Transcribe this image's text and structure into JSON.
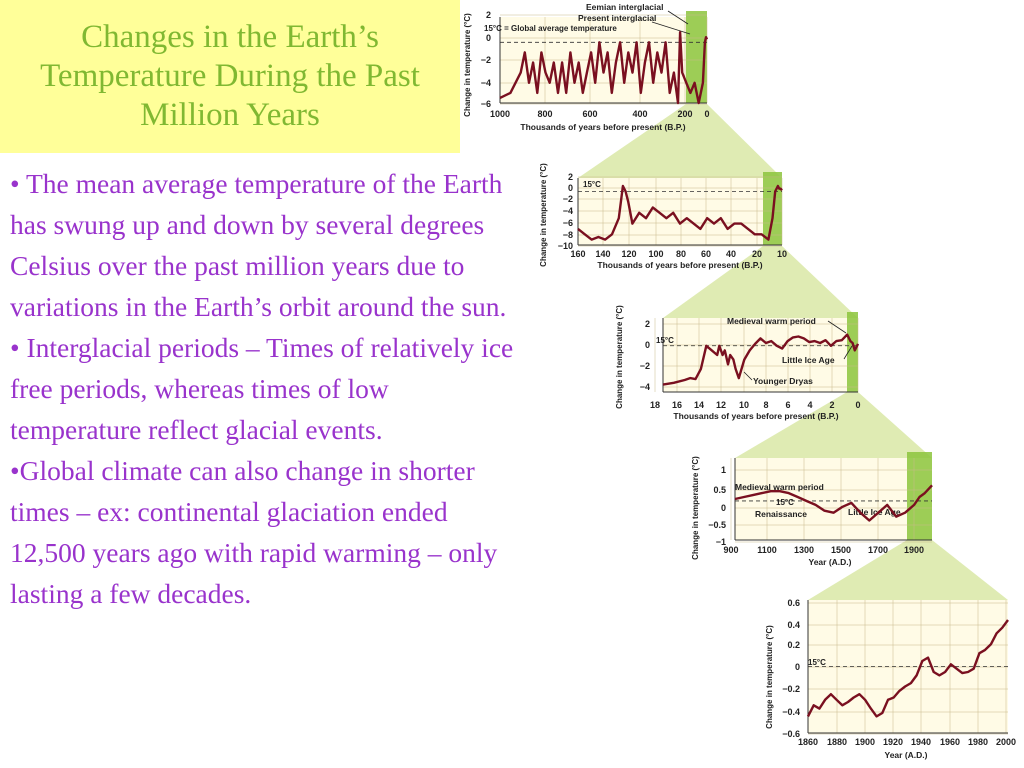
{
  "slide": {
    "title": "Changes in the Earth’s Temperature During the Past Million Years",
    "bullets": [
      "• The mean average temperature of the Earth has swung up and down by several degrees Celsius over the past million years due to variations in the Earth’s orbit around the sun.",
      "• Interglacial periods – Times of relatively ice free periods, whereas times of low temperature reflect glacial events.",
      "•Global climate can also change in shorter times – ex: continental glaciation ended 12,500 years ago with rapid warming – only lasting a few decades."
    ]
  },
  "colors": {
    "title": "#80b832",
    "text": "#9933cc",
    "line": "#7a1020",
    "highlight": "#8cc43c",
    "connector": "#d4e49a",
    "background": "#ffff99"
  },
  "chart_data": [
    {
      "type": "line",
      "ylabel": "Change in temperature (°C)",
      "xlabel": "Thousands of years before present (B.P.)",
      "xticks": [
        "1000",
        "800",
        "600",
        "400",
        "200",
        "0"
      ],
      "yticks": [
        "2",
        "0",
        "−2",
        "−4",
        "−6"
      ],
      "xlim": [
        1000,
        0
      ],
      "ylim": [
        -6,
        2.5
      ],
      "baseline_label": "15°C = Global average temperature",
      "annotations": [
        "Eemian interglacial",
        "Present interglacial"
      ],
      "x": [
        1000,
        950,
        900,
        880,
        860,
        840,
        820,
        800,
        780,
        760,
        740,
        720,
        700,
        680,
        660,
        640,
        620,
        600,
        580,
        560,
        540,
        520,
        500,
        480,
        460,
        440,
        420,
        400,
        380,
        360,
        340,
        320,
        300,
        280,
        260,
        240,
        220,
        200,
        180,
        160,
        140,
        130,
        120,
        100,
        80,
        60,
        40,
        20,
        10,
        5,
        0
      ],
      "y": [
        -5.5,
        -5,
        -3,
        -1,
        -4,
        -2,
        -5,
        -1,
        -3,
        -4,
        -2,
        -5,
        -2,
        -5,
        -1,
        -4,
        -2,
        -5,
        -3,
        -1,
        -4,
        0,
        -3,
        -1,
        -5,
        -2,
        0,
        -4,
        -1,
        -3,
        0,
        -5,
        -2,
        0,
        -4,
        -1,
        -3,
        0,
        -5,
        -3,
        -6,
        1,
        -3,
        -4,
        -5,
        -4,
        -6,
        -4,
        0,
        0.5,
        0.3
      ]
    },
    {
      "type": "line",
      "ylabel": "Change in temperature (°C)",
      "xlabel": "Thousands of years before present (B.P.)",
      "xticks": [
        "160",
        "140",
        "120",
        "100",
        "80",
        "60",
        "40",
        "20",
        "10"
      ],
      "yticks": [
        "2",
        "0",
        "−2",
        "−4",
        "−6",
        "−8",
        "−10"
      ],
      "baseline_label": "15°C",
      "x": [
        160,
        155,
        150,
        145,
        140,
        135,
        130,
        127,
        125,
        123,
        120,
        115,
        110,
        105,
        100,
        95,
        90,
        85,
        80,
        75,
        70,
        65,
        60,
        55,
        50,
        45,
        40,
        35,
        30,
        25,
        20,
        17,
        15,
        13,
        12,
        11,
        10
      ],
      "y": [
        -7,
        -8,
        -9,
        -8.5,
        -9,
        -8,
        -5,
        1,
        0,
        -2,
        -6,
        -4,
        -5,
        -3,
        -4,
        -5,
        -4,
        -6,
        -5,
        -6,
        -7,
        -5,
        -6,
        -5,
        -7,
        -6,
        -6,
        -7,
        -8,
        -8,
        -9,
        -5,
        0,
        1,
        0.5,
        0.5,
        0.2
      ]
    },
    {
      "type": "line",
      "ylabel": "Change in temperature (°C)",
      "xlabel": "Thousands of years before present (B.P.)",
      "xticks": [
        "18",
        "16",
        "14",
        "12",
        "10",
        "8",
        "6",
        "4",
        "2",
        "0"
      ],
      "yticks": [
        "2",
        "0",
        "−2",
        "−4"
      ],
      "baseline_label": "15°C",
      "annotations": [
        "Medieval warm period",
        "Little Ice Age",
        "Younger Dryas"
      ],
      "x": [
        18,
        17,
        16,
        15.5,
        15,
        14.5,
        14,
        13.5,
        13,
        12.8,
        12.5,
        12.3,
        12,
        11.8,
        11.5,
        11.3,
        11,
        10.5,
        10,
        9.5,
        9,
        8.5,
        8,
        7.5,
        7,
        6.5,
        6,
        5.5,
        5,
        4.5,
        4,
        3.5,
        3,
        2.5,
        2,
        1.5,
        1,
        0.7,
        0.5,
        0.3,
        0
      ],
      "y": [
        -4.2,
        -4,
        -3.7,
        -3.5,
        -3.6,
        -2.5,
        0,
        -0.5,
        -1,
        0,
        -1,
        -0.5,
        -2,
        -1,
        -1.5,
        -2.5,
        -3.5,
        -1.5,
        -0.5,
        0.2,
        0.8,
        0.3,
        0.5,
        0,
        -0.3,
        0.5,
        0.9,
        1,
        0.8,
        0.4,
        0.5,
        0.3,
        0.6,
        0,
        0.5,
        0.6,
        1.2,
        0.5,
        0.3,
        -0.5,
        0.2
      ]
    },
    {
      "type": "line",
      "ylabel": "Change in temperature (°C)",
      "xlabel": "Year (A.D.)",
      "xticks": [
        "900",
        "1100",
        "1300",
        "1500",
        "1700",
        "1900"
      ],
      "yticks": [
        "1",
        "0.5",
        "0",
        "−0.5",
        "−1"
      ],
      "baseline_label": "15°C",
      "annotations": [
        "Medieval warm period",
        "Renaissance",
        "Little Ice Age"
      ],
      "x": [
        900,
        950,
        1000,
        1050,
        1100,
        1150,
        1200,
        1250,
        1300,
        1350,
        1400,
        1450,
        1500,
        1550,
        1600,
        1650,
        1700,
        1750,
        1800,
        1850,
        1900,
        1930,
        1960,
        2000
      ],
      "y": [
        0.05,
        0.1,
        0.15,
        0.2,
        0.25,
        0.25,
        0.2,
        0.1,
        0,
        -0.1,
        -0.25,
        -0.3,
        -0.15,
        -0.05,
        -0.3,
        -0.5,
        -0.3,
        -0.1,
        -0.4,
        -0.3,
        -0.1,
        0.1,
        0.2,
        0.4
      ]
    },
    {
      "type": "line",
      "ylabel": "Change in temperature (°C)",
      "xlabel": "Year (A.D.)",
      "xticks": [
        "1860",
        "1880",
        "1900",
        "1920",
        "1940",
        "1960",
        "1980",
        "2000"
      ],
      "yticks": [
        "0.6",
        "0.4",
        "0.2",
        "0",
        "−0.2",
        "−0.4",
        "−0.6"
      ],
      "xlim": [
        1860,
        2000
      ],
      "ylim": [
        -0.6,
        0.6
      ],
      "baseline_label": "15°C",
      "x": [
        1860,
        1864,
        1868,
        1872,
        1876,
        1880,
        1884,
        1888,
        1892,
        1896,
        1900,
        1904,
        1908,
        1912,
        1916,
        1920,
        1924,
        1928,
        1932,
        1936,
        1940,
        1944,
        1948,
        1952,
        1956,
        1960,
        1964,
        1968,
        1972,
        1976,
        1980,
        1984,
        1988,
        1992,
        1996,
        2000
      ],
      "y": [
        -0.45,
        -0.35,
        -0.38,
        -0.3,
        -0.25,
        -0.3,
        -0.35,
        -0.32,
        -0.28,
        -0.25,
        -0.3,
        -0.38,
        -0.45,
        -0.42,
        -0.3,
        -0.28,
        -0.22,
        -0.18,
        -0.15,
        -0.08,
        0.05,
        0.08,
        -0.05,
        -0.08,
        -0.05,
        0.02,
        -0.02,
        -0.06,
        -0.05,
        -0.02,
        0.12,
        0.15,
        0.2,
        0.3,
        0.35,
        0.42
      ]
    }
  ]
}
